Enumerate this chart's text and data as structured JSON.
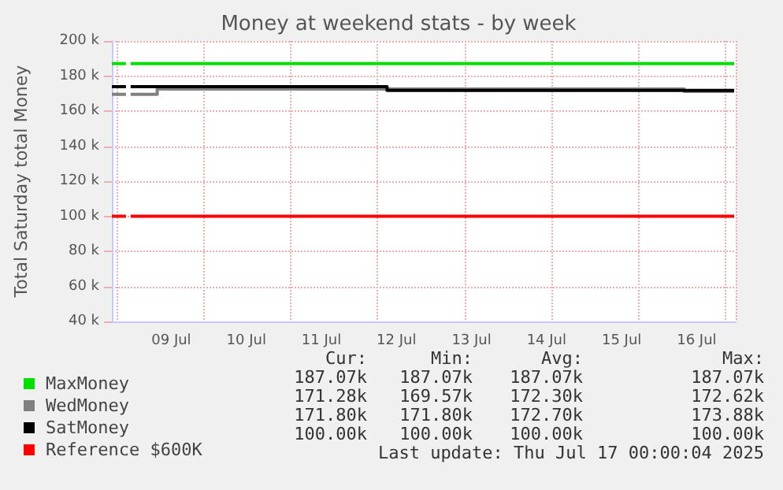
{
  "chart_data": {
    "type": "step",
    "title": "Money at weekend stats - by week",
    "ylabel": "Total Saturday total Money",
    "xlim": [
      "2025-07-08T17:00",
      "2025-07-17T00:30"
    ],
    "xticks": [
      {
        "value": "2025-07-09T12:00",
        "label": "09 Jul"
      },
      {
        "value": "2025-07-10T12:00",
        "label": "10 Jul"
      },
      {
        "value": "2025-07-11T12:00",
        "label": "11 Jul"
      },
      {
        "value": "2025-07-12T12:00",
        "label": "12 Jul"
      },
      {
        "value": "2025-07-13T12:00",
        "label": "13 Jul"
      },
      {
        "value": "2025-07-14T12:00",
        "label": "14 Jul"
      },
      {
        "value": "2025-07-15T12:00",
        "label": "15 Jul"
      },
      {
        "value": "2025-07-16T12:00",
        "label": "16 Jul"
      }
    ],
    "ylim": [
      40000,
      200000
    ],
    "yticks": [
      {
        "value": 40000,
        "label": "40 k"
      },
      {
        "value": 60000,
        "label": "60 k"
      },
      {
        "value": 80000,
        "label": "80 k"
      },
      {
        "value": 100000,
        "label": "100 k"
      },
      {
        "value": 120000,
        "label": "120 k"
      },
      {
        "value": 140000,
        "label": "140 k"
      },
      {
        "value": 160000,
        "label": "160 k"
      },
      {
        "value": 180000,
        "label": "180 k"
      },
      {
        "value": 200000,
        "label": "200 k"
      }
    ],
    "grid": true,
    "legend": "bottom",
    "marker": "none",
    "line_style": "solid",
    "series": [
      {
        "name": "MaxMoney",
        "color": "#00e000",
        "x": [
          "2025-07-08T17:00",
          "2025-07-08T21:30",
          "2025-07-08T21:45",
          "2025-07-08T23:00",
          "2025-07-17T00:00"
        ],
        "values": [
          187070,
          187070,
          null,
          187070,
          187070
        ]
      },
      {
        "name": "WedMoney",
        "color": "#808080",
        "x": [
          "2025-07-08T17:00",
          "2025-07-08T21:30",
          "2025-07-08T21:45",
          "2025-07-08T23:00",
          "2025-07-09T07:30",
          "2025-07-16T08:00",
          "2025-07-17T00:00"
        ],
        "values": [
          169570,
          169570,
          null,
          169570,
          172620,
          171280,
          171280
        ]
      },
      {
        "name": "SatMoney",
        "color": "#000000",
        "x": [
          "2025-07-08T17:00",
          "2025-07-08T21:30",
          "2025-07-08T21:45",
          "2025-07-08T23:00",
          "2025-07-12T09:00",
          "2025-07-17T00:00"
        ],
        "values": [
          173880,
          173880,
          null,
          173880,
          171800,
          171800
        ]
      },
      {
        "name": "Reference $600K",
        "color": "#ff0000",
        "x": [
          "2025-07-08T17:00",
          "2025-07-08T21:30",
          "2025-07-08T21:45",
          "2025-07-08T23:00",
          "2025-07-17T00:00"
        ],
        "values": [
          100000,
          100000,
          null,
          100000,
          100000
        ]
      }
    ],
    "annotations": [
      "Cur:",
      "Min:",
      "Avg:",
      "Max:",
      "187.07k",
      "187.07k",
      "187.07k",
      "187.07k",
      "171.28k",
      "169.57k",
      "172.30k",
      "172.62k",
      "171.80k",
      "171.80k",
      "172.70k",
      "173.88k",
      "100.00k",
      "100.00k",
      "100.00k",
      "100.00k",
      "Last update: Thu Jul 17 00:00:04 2025"
    ]
  }
}
